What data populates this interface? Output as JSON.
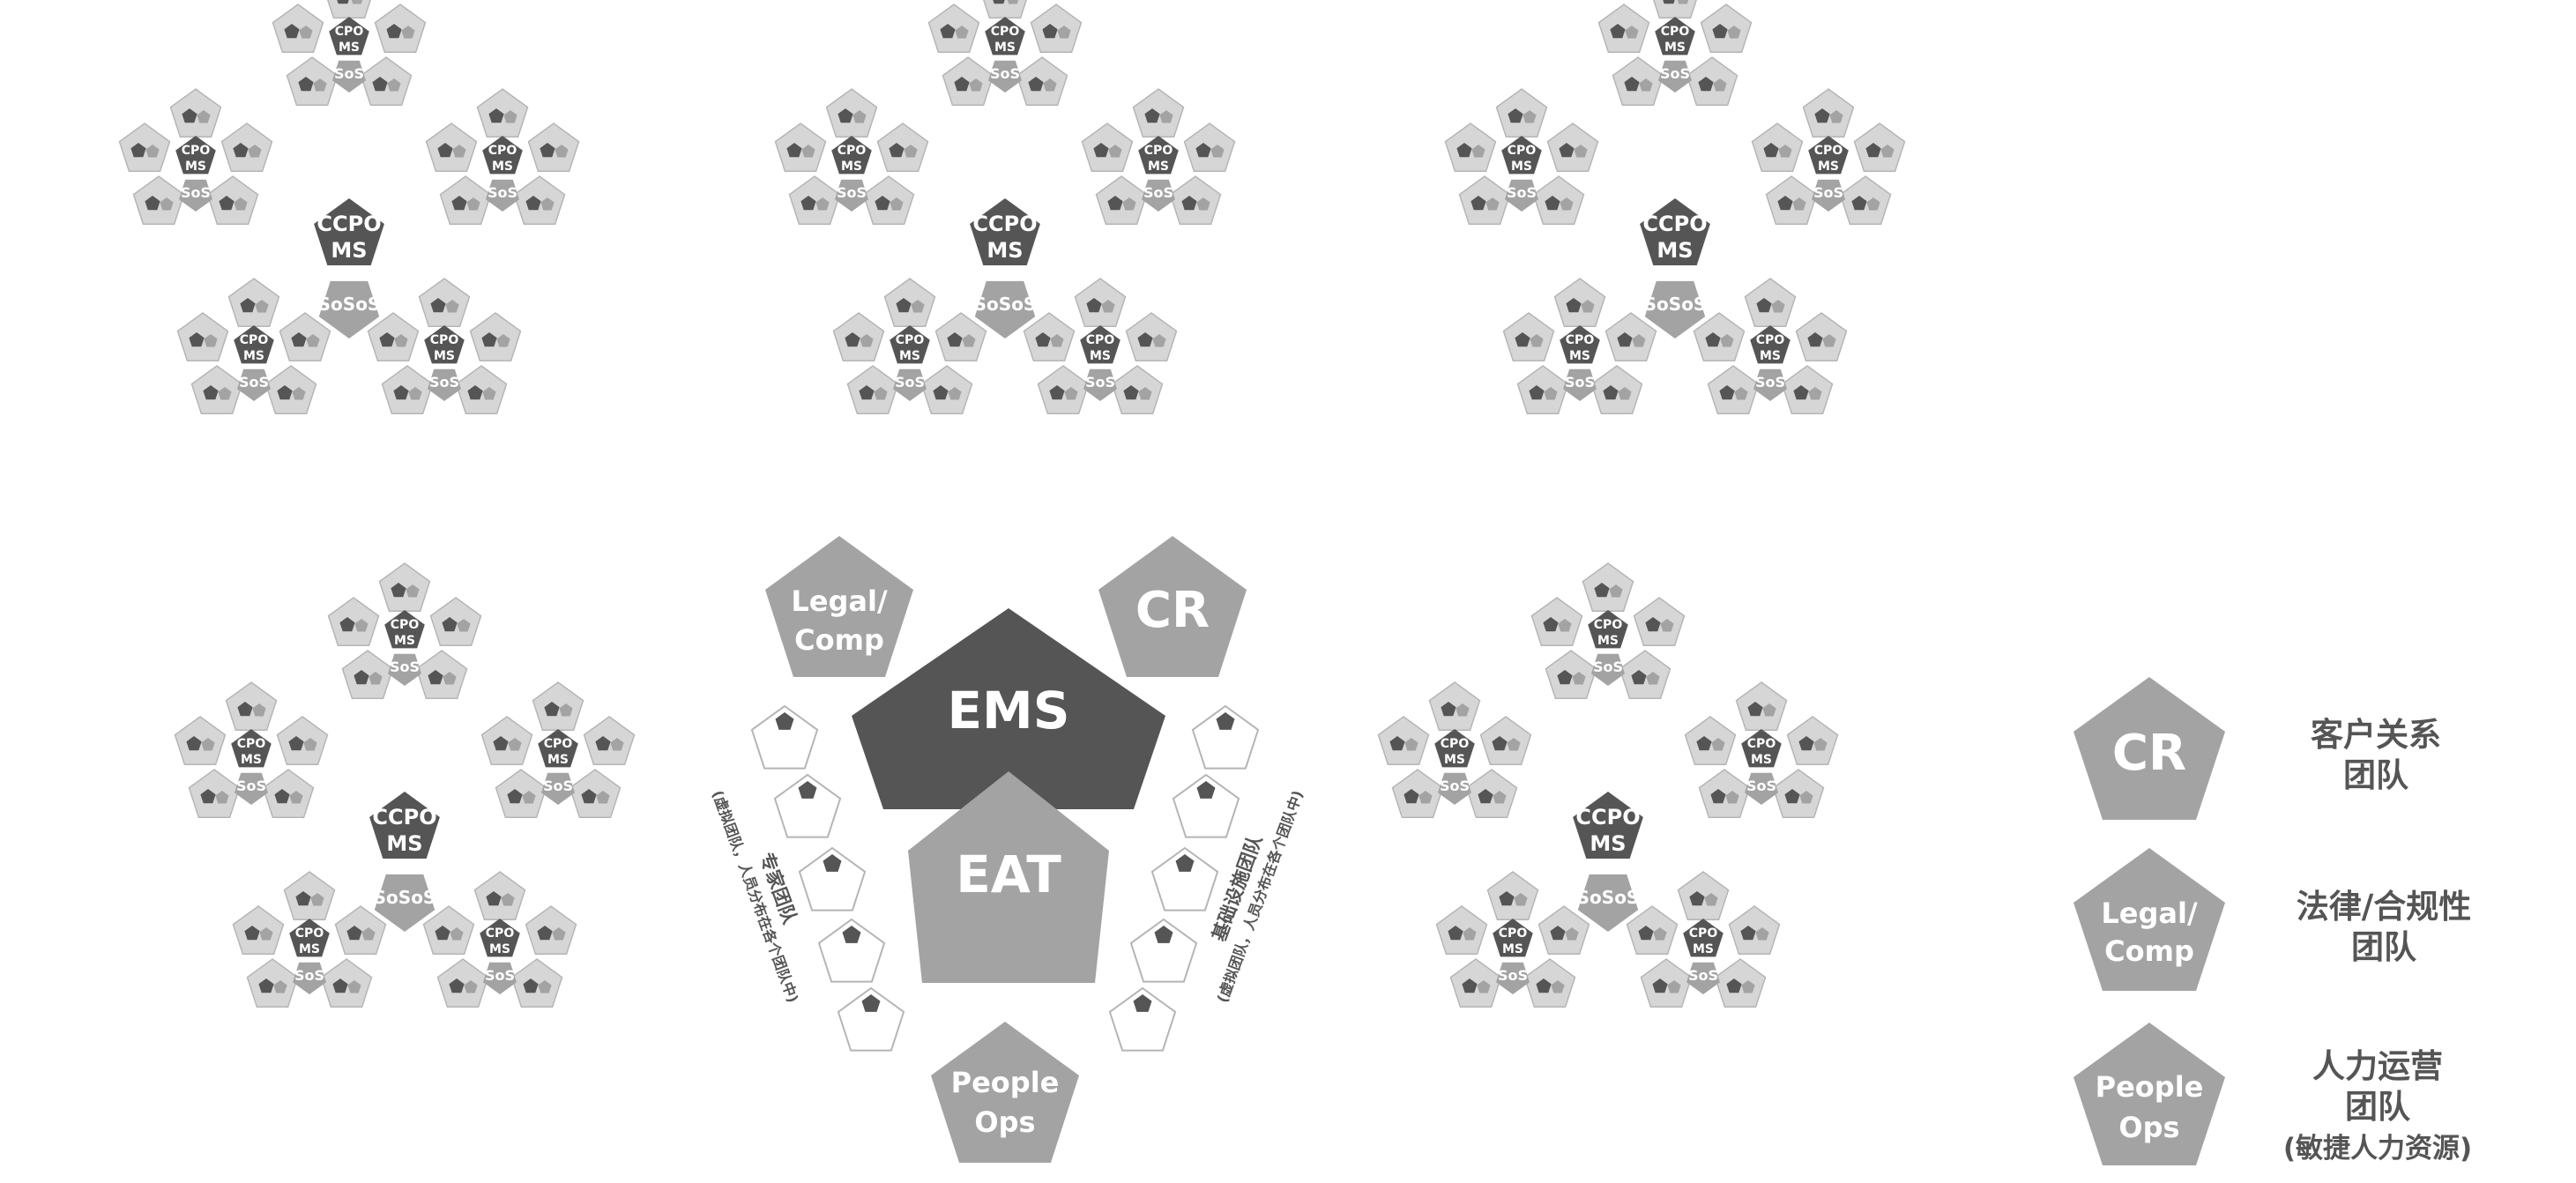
{
  "labels": {
    "cpo_ms": [
      "CPO",
      "MS"
    ],
    "sos": "SoS",
    "ccpo_ms": [
      "CCPO",
      "MS"
    ],
    "sososos": "SoSoS",
    "ems": "EMS",
    "eat": "EAT",
    "cr": "CR",
    "legal_comp": [
      "Legal/",
      "Comp"
    ],
    "people_ops": [
      "People",
      "Ops"
    ],
    "expert_team": "专家团队",
    "expert_team_note": "(虚拟团队，人员分布在各个团队中)",
    "infra_team": "基础设施团队",
    "infra_team_note": "(虚拟团队，人员分布在各个团队中)"
  },
  "legend": {
    "cr": {
      "shape_label": "CR",
      "description": [
        "客户关系",
        "团队"
      ]
    },
    "legal": {
      "shape_label": [
        "Legal/",
        "Comp"
      ],
      "description": [
        "法律/合规性",
        "团队"
      ]
    },
    "people": {
      "shape_label": [
        "People",
        "Ops"
      ],
      "description": [
        "人力运营",
        "团队",
        "(敏捷人力资源)"
      ]
    }
  },
  "colors": {
    "dark": "#555555",
    "medium": "#a3a3a3",
    "light": "#d6d6d6",
    "outline": "#b5b5b5",
    "text_gray": "#666666",
    "white": "#ffffff"
  }
}
